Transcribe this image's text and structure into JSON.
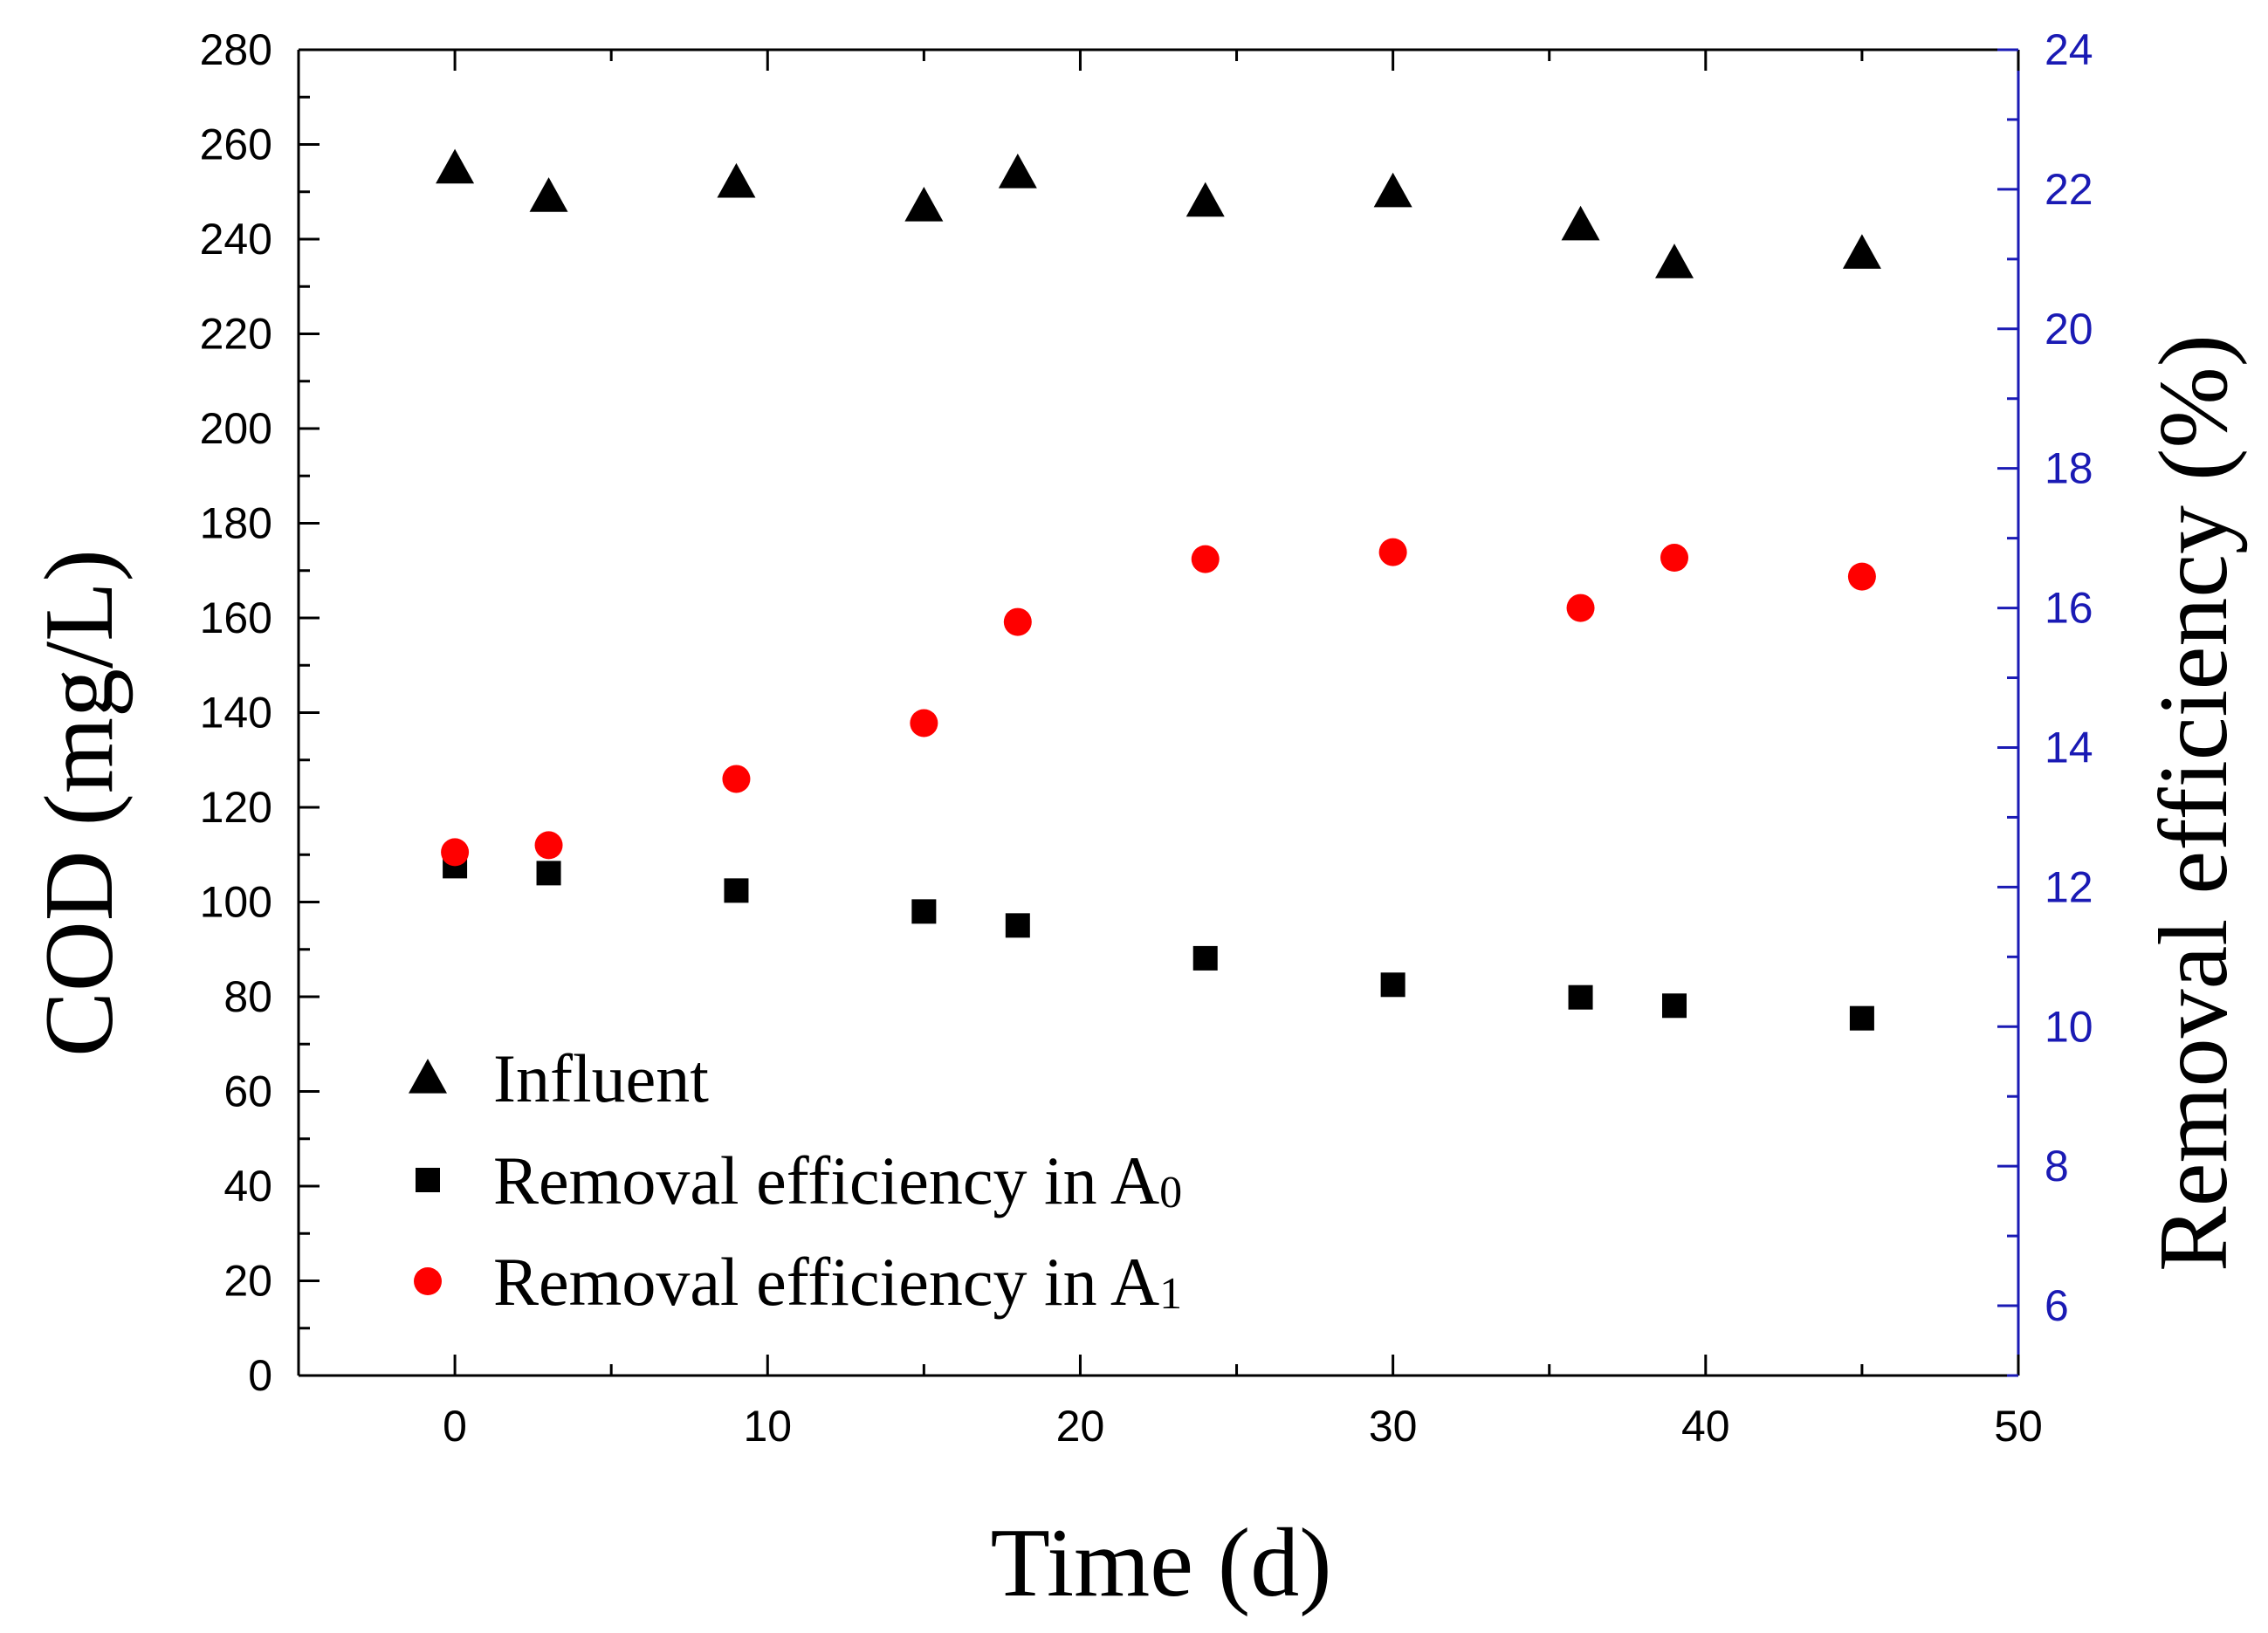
{
  "chart_data": {
    "type": "scatter",
    "title": "",
    "xlabel": "Time (d)",
    "ylabel": "COD (mg/L)",
    "y2label": "Removal efficiency (%)",
    "xlim": [
      -5,
      50
    ],
    "ylim": [
      0,
      280
    ],
    "y2lim": [
      5,
      24
    ],
    "xticks": [
      0,
      10,
      20,
      30,
      40,
      50
    ],
    "yticks": [
      0,
      20,
      40,
      60,
      80,
      100,
      120,
      140,
      160,
      180,
      200,
      220,
      240,
      260,
      280
    ],
    "y2ticks": [
      6,
      8,
      10,
      12,
      14,
      16,
      18,
      20,
      22,
      24
    ],
    "grid": false,
    "legend_position": "bottom-left",
    "colors": {
      "left_axis": "#000000",
      "right_axis": "#1a1ab4",
      "influent": "#000000",
      "a0": "#000000",
      "a1": "#ff0000"
    },
    "series": [
      {
        "name": "Influent",
        "legend_label": "Influent",
        "marker": "triangle",
        "axis": "left",
        "x": [
          0,
          3,
          9,
          15,
          18,
          24,
          30,
          36,
          39,
          45
        ],
        "y": [
          255,
          249,
          252,
          247,
          254,
          248,
          250,
          243,
          235,
          237
        ]
      },
      {
        "name": "Removal efficiency in A0",
        "legend_label": "Removal efficiency in A",
        "legend_sub": "0",
        "marker": "square",
        "axis": "right",
        "x": [
          0,
          3,
          9,
          15,
          18,
          24,
          30,
          36,
          39,
          45
        ],
        "y": [
          12.3,
          12.2,
          11.95,
          11.65,
          11.45,
          10.98,
          10.6,
          10.42,
          10.3,
          10.12
        ]
      },
      {
        "name": "Removal efficiency in A1",
        "legend_label": "Removal efficiency in A",
        "legend_sub": "1",
        "marker": "circle",
        "axis": "right",
        "x": [
          0,
          3,
          9,
          15,
          18,
          24,
          30,
          36,
          39,
          45
        ],
        "y": [
          12.5,
          12.6,
          13.55,
          14.35,
          15.8,
          16.7,
          16.8,
          16.0,
          16.72,
          16.45
        ]
      }
    ]
  }
}
